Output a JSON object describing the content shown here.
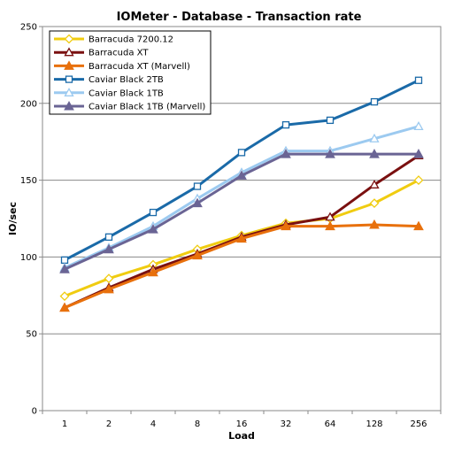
{
  "chart_data": {
    "type": "line",
    "title": "IOMeter - Database - Transaction rate",
    "xlabel": "Load",
    "ylabel": "IO/sec",
    "categories": [
      "1",
      "2",
      "4",
      "8",
      "16",
      "32",
      "64",
      "128",
      "256"
    ],
    "ylim": [
      0,
      250
    ],
    "yticks": [
      0,
      50,
      100,
      150,
      200,
      250
    ],
    "grid": "horizontal",
    "legend_position": "top-left",
    "series": [
      {
        "name": "Barracuda 7200.12",
        "color": "#f0cc10",
        "marker": "diamond-open",
        "values": [
          74.5,
          86,
          95,
          105,
          114,
          122,
          125,
          135,
          150
        ]
      },
      {
        "name": "Barracuda XT",
        "color": "#7a1010",
        "marker": "triangle-open",
        "values": [
          67,
          80,
          92,
          102,
          113,
          121,
          126,
          147,
          166
        ]
      },
      {
        "name": "Barracuda XT (Marvell)",
        "color": "#e8700c",
        "marker": "triangle-filled",
        "values": [
          67,
          79,
          90,
          101,
          112,
          120,
          120,
          121,
          120
        ]
      },
      {
        "name": "Caviar Black 2TB",
        "color": "#1a6aa8",
        "marker": "square-open",
        "values": [
          98,
          113,
          129,
          146,
          168,
          186,
          189,
          201,
          215
        ]
      },
      {
        "name": "Caviar Black 1TB",
        "color": "#9ccaf0",
        "marker": "triangle-open",
        "values": [
          93,
          106,
          120,
          138,
          155,
          169,
          169,
          177,
          185
        ]
      },
      {
        "name": "Caviar Black 1TB (Marvell)",
        "color": "#6a6494",
        "marker": "triangle-filled",
        "values": [
          92,
          105,
          118,
          135,
          153,
          167,
          167,
          167,
          167
        ]
      }
    ]
  }
}
